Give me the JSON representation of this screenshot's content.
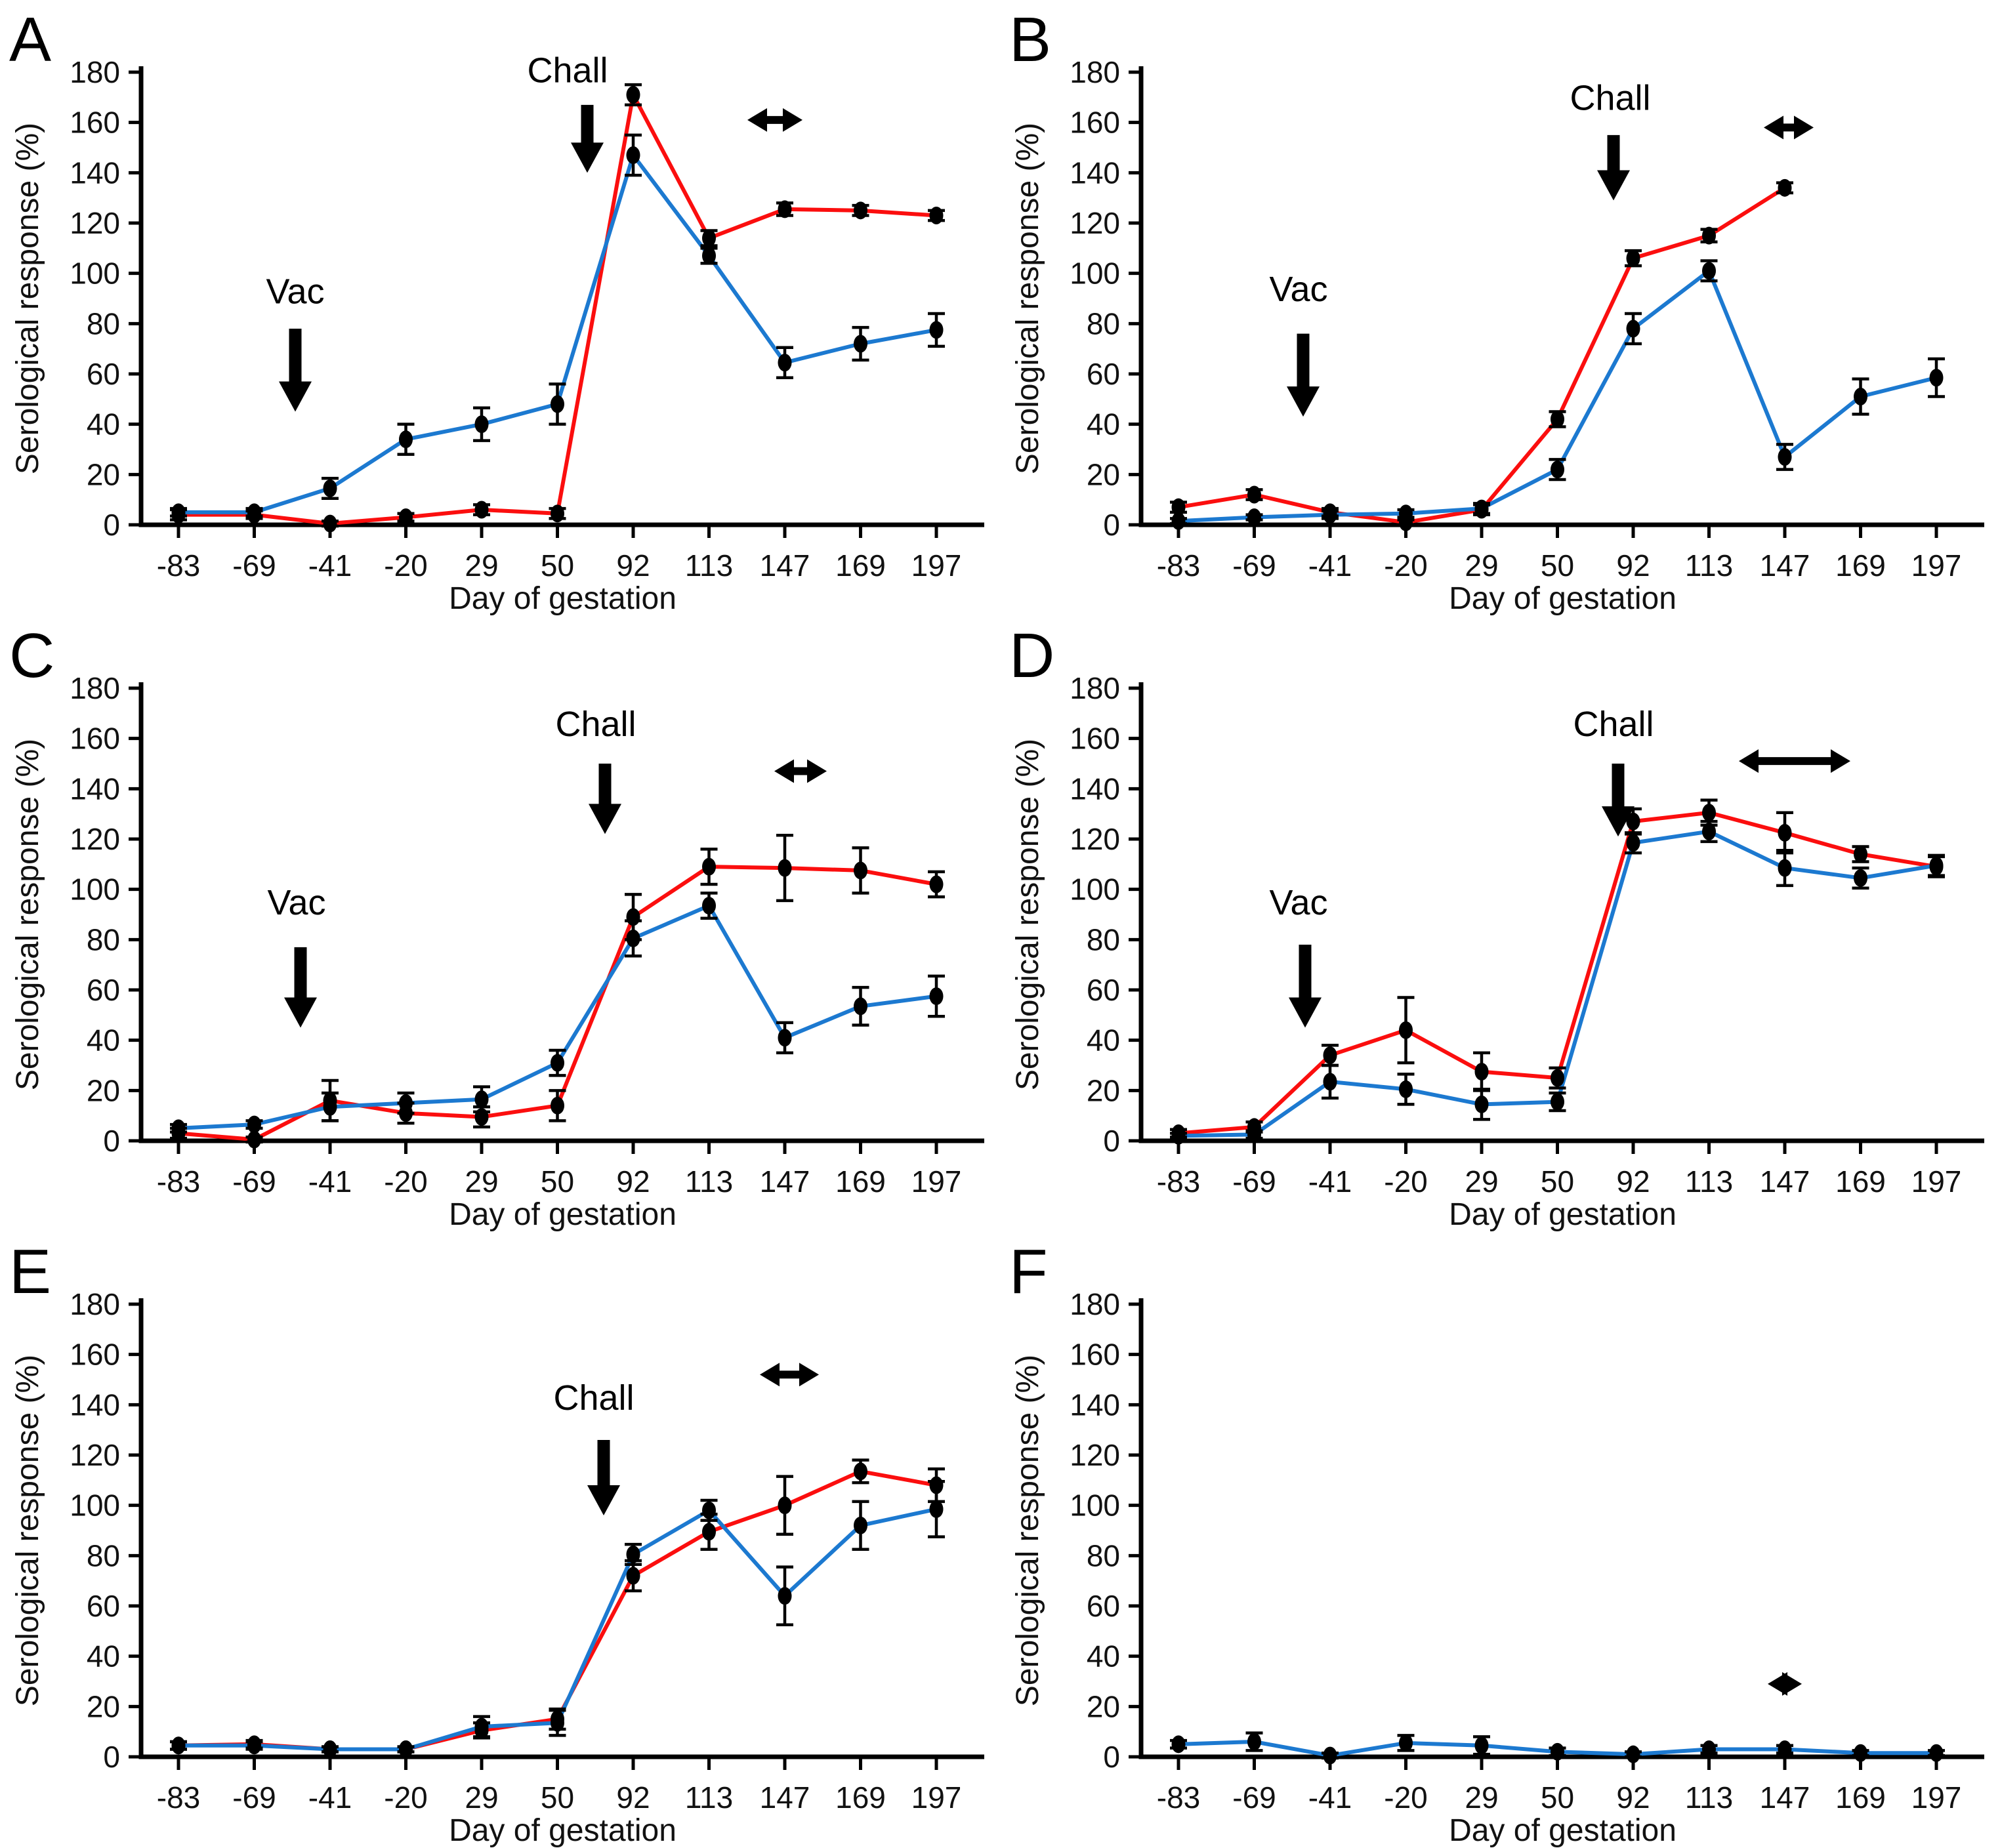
{
  "figure": {
    "background": "#ffffff",
    "colors": {
      "red": "#fb0e0e",
      "blue": "#1c79d0",
      "marker": "#000000",
      "axis": "#000000"
    }
  },
  "axes_defaults": {
    "ylabel": "Serological response (%)",
    "xlabel": "Day of gestation",
    "ylim": [
      0,
      180
    ],
    "ytick_step": 20,
    "grid": false,
    "legend": "none",
    "categories": [
      "-83",
      "-69",
      "-41",
      "-20",
      "29",
      "50",
      "92",
      "113",
      "147",
      "169",
      "197"
    ]
  },
  "chart_data": [
    {
      "type": "line",
      "panel_label": "A",
      "categories": [
        "-83",
        "-69",
        "-41",
        "-20",
        "29",
        "50",
        "92",
        "113",
        "147",
        "169",
        "197"
      ],
      "series": [
        {
          "name": "red-line",
          "color_key": "red",
          "values": [
            4,
            4,
            0.5,
            3,
            6,
            4.5,
            171,
            114,
            125.5,
            125,
            123
          ],
          "errors": [
            2,
            1.5,
            1,
            1.5,
            2,
            2,
            4,
            3,
            2.5,
            2,
            2
          ]
        },
        {
          "name": "blue-line",
          "color_key": "blue",
          "values": [
            5,
            5,
            14.5,
            34,
            40,
            48,
            147,
            107,
            64.5,
            72,
            77.5
          ],
          "errors": [
            1.5,
            1.5,
            4,
            6,
            6.5,
            8,
            8,
            3,
            6,
            6.5,
            6.5
          ]
        }
      ],
      "annotations": {
        "vac": {
          "label": "Vac",
          "text_x": 450,
          "text_value": 88,
          "arrow_x": 450,
          "arrow_from": 78,
          "arrow_to": 45
        },
        "chall": {
          "label": "Chall",
          "text_x": 865,
          "text_value": 176,
          "arrow_x": 895,
          "arrow_from": 167,
          "arrow_to": 140
        },
        "span_arrow": {
          "x_center": 1181,
          "half_width": 42,
          "value": 161
        }
      }
    },
    {
      "type": "line",
      "panel_label": "B",
      "categories": [
        "-83",
        "-69",
        "-41",
        "-20",
        "29",
        "50",
        "92",
        "113",
        "147",
        "169",
        "197"
      ],
      "series": [
        {
          "name": "red-line",
          "color_key": "red",
          "values": [
            7,
            12,
            5,
            1,
            6,
            42,
            106,
            115,
            134,
            null,
            null
          ],
          "errors": [
            2,
            2,
            1.5,
            1,
            2,
            3,
            3,
            2.5,
            2,
            null,
            null
          ]
        },
        {
          "name": "blue-line",
          "color_key": "blue",
          "values": [
            1.5,
            3,
            4,
            4.5,
            6.5,
            22,
            78,
            101,
            27,
            51,
            58.5
          ],
          "errors": [
            1,
            1,
            1.5,
            1.5,
            2,
            4,
            6,
            4,
            5,
            7,
            7.5
          ]
        }
      ],
      "annotations": {
        "vac": {
          "label": "Vac",
          "text_x": 455,
          "text_value": 89,
          "arrow_x": 462,
          "arrow_from": 76,
          "arrow_to": 43
        },
        "chall": {
          "label": "Chall",
          "text_x": 930,
          "text_value": 165,
          "arrow_x": 935,
          "arrow_from": 155,
          "arrow_to": 129
        },
        "span_arrow": {
          "x_center": 1202,
          "half_width": 38,
          "value": 158
        }
      }
    },
    {
      "type": "line",
      "panel_label": "C",
      "categories": [
        "-83",
        "-69",
        "-41",
        "-20",
        "29",
        "50",
        "92",
        "113",
        "147",
        "169",
        "197"
      ],
      "series": [
        {
          "name": "red-line",
          "color_key": "red",
          "values": [
            3,
            0.5,
            16,
            11,
            9.5,
            14,
            89,
            109,
            108.5,
            107.5,
            102
          ],
          "errors": [
            2,
            1,
            8,
            4,
            4,
            6,
            9,
            7,
            13,
            9,
            5
          ]
        },
        {
          "name": "blue-line",
          "color_key": "blue",
          "values": [
            5,
            6.5,
            13.5,
            15,
            16.5,
            31,
            80.5,
            93.5,
            41,
            53.5,
            57.5
          ],
          "errors": [
            1.5,
            1.5,
            5.5,
            4,
            5,
            5,
            7,
            5,
            6,
            7.5,
            8
          ]
        }
      ],
      "annotations": {
        "vac": {
          "label": "Vac",
          "text_x": 452,
          "text_value": 90,
          "arrow_x": 458,
          "arrow_from": 77,
          "arrow_to": 45
        },
        "chall": {
          "label": "Chall",
          "text_x": 908,
          "text_value": 161,
          "arrow_x": 922,
          "arrow_from": 150,
          "arrow_to": 122
        },
        "span_arrow": {
          "x_center": 1220,
          "half_width": 40,
          "value": 147
        }
      }
    },
    {
      "type": "line",
      "panel_label": "D",
      "categories": [
        "-83",
        "-69",
        "-41",
        "-20",
        "29",
        "50",
        "92",
        "113",
        "147",
        "169",
        "197"
      ],
      "series": [
        {
          "name": "red-line",
          "color_key": "red",
          "values": [
            3,
            5.5,
            34,
            44,
            27.5,
            25,
            127,
            130.5,
            122.5,
            114,
            109
          ],
          "errors": [
            1.5,
            2,
            4,
            13,
            7.5,
            4,
            5,
            5,
            8,
            3,
            4
          ]
        },
        {
          "name": "blue-line",
          "color_key": "blue",
          "values": [
            2,
            2.5,
            23.5,
            20.5,
            14.5,
            15.5,
            118.5,
            123,
            108.5,
            104.5,
            109.5
          ],
          "errors": [
            1,
            1.5,
            6.5,
            6,
            6,
            3.5,
            4,
            4,
            7,
            4,
            4
          ]
        }
      ],
      "annotations": {
        "vac": {
          "label": "Vac",
          "text_x": 455,
          "text_value": 90,
          "arrow_x": 465,
          "arrow_from": 78,
          "arrow_to": 45
        },
        "chall": {
          "label": "Chall",
          "text_x": 935,
          "text_value": 161,
          "arrow_x": 942,
          "arrow_from": 150,
          "arrow_to": 121
        },
        "span_arrow": {
          "x_center": 1211,
          "half_width": 85,
          "value": 151
        }
      }
    },
    {
      "type": "line",
      "panel_label": "E",
      "categories": [
        "-83",
        "-69",
        "-41",
        "-20",
        "29",
        "50",
        "92",
        "113",
        "147",
        "169",
        "197"
      ],
      "series": [
        {
          "name": "red-line",
          "color_key": "red",
          "values": [
            4.5,
            5,
            3,
            3,
            10.5,
            15,
            72,
            89.5,
            100,
            113.5,
            108
          ],
          "errors": [
            1.5,
            1.5,
            1,
            1,
            3,
            4,
            6,
            7,
            11.5,
            4.5,
            6.5
          ]
        },
        {
          "name": "blue-line",
          "color_key": "blue",
          "values": [
            4.5,
            4.5,
            3,
            3,
            12,
            13.5,
            80.5,
            98,
            64,
            92,
            98.5
          ],
          "errors": [
            1.5,
            1.5,
            1,
            1,
            4,
            5,
            4,
            4,
            11.5,
            9.5,
            11
          ]
        }
      ],
      "annotations": {
        "chall": {
          "label": "Chall",
          "text_x": 905,
          "text_value": 138,
          "arrow_x": 920,
          "arrow_from": 126,
          "arrow_to": 96
        },
        "span_arrow": {
          "x_center": 1203,
          "half_width": 45,
          "value": 152
        }
      }
    },
    {
      "type": "line",
      "panel_label": "F",
      "categories": [
        "-83",
        "-69",
        "-41",
        "-20",
        "29",
        "50",
        "92",
        "113",
        "147",
        "169",
        "197"
      ],
      "series": [
        {
          "name": "blue-line",
          "color_key": "blue",
          "values": [
            5,
            6,
            0.5,
            5.5,
            4.5,
            2,
            1,
            3,
            3,
            1.5,
            1.5
          ],
          "errors": [
            1.5,
            3.5,
            1,
            3,
            3.5,
            1.5,
            1,
            1.5,
            1.5,
            1,
            1
          ]
        }
      ],
      "annotations": {
        "span_arrow": {
          "x_center": 1196,
          "half_width": 26,
          "value": 29
        }
      }
    }
  ]
}
